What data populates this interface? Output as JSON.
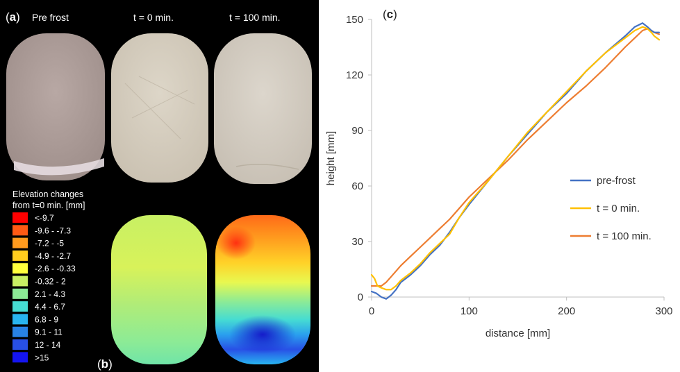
{
  "panel_a": {
    "label_letter": "a",
    "columns": [
      "Pre frost",
      "t = 0 min.",
      "t = 100 min."
    ]
  },
  "panel_b": {
    "label_letter": "b",
    "legend_title_line1": "Elevation changes",
    "legend_title_line2": "from t=0 min. [mm]",
    "legend": [
      {
        "label": "<-9.7",
        "color": "#ff0000"
      },
      {
        "label": "-9.6 - -7.3",
        "color": "#ff5a14"
      },
      {
        "label": "-7.2 - -5",
        "color": "#ff9a1e"
      },
      {
        "label": "-4.9 - -2.7",
        "color": "#ffcd1e"
      },
      {
        "label": "-2.6 - -0.33",
        "color": "#ffff3c"
      },
      {
        "label": "-0.32 - 2",
        "color": "#c8f064"
      },
      {
        "label": "2.1 - 4.3",
        "color": "#8ceb96"
      },
      {
        "label": "4.4 - 6.7",
        "color": "#46dcd2"
      },
      {
        "label": "6.8 - 9",
        "color": "#28b4f0"
      },
      {
        "label": "9.1 - 11",
        "color": "#2882e6"
      },
      {
        "label": "12 - 14",
        "color": "#2850e6"
      },
      {
        "label": ">15",
        "color": "#1414f0"
      }
    ]
  },
  "chart_data": {
    "type": "line",
    "panel_label": "c",
    "title": "",
    "xlabel": "distance [mm]",
    "ylabel": "height [mm]",
    "xlim": [
      0,
      300
    ],
    "ylim": [
      0,
      150
    ],
    "xticks": [
      0,
      100,
      200,
      300
    ],
    "yticks": [
      0,
      30,
      60,
      90,
      120,
      150
    ],
    "grid": false,
    "legend_position": "right",
    "series": [
      {
        "name": "pre-frost",
        "color": "#4472c4",
        "x": [
          0,
          5,
          10,
          15,
          20,
          25,
          30,
          40,
          50,
          60,
          70,
          80,
          90,
          100,
          120,
          140,
          160,
          180,
          200,
          220,
          240,
          260,
          270,
          278,
          283,
          287,
          290,
          295
        ],
        "y": [
          3,
          2,
          0,
          -1,
          1,
          4,
          8,
          12,
          17,
          23,
          28,
          35,
          43,
          50,
          63,
          76,
          88,
          100,
          110,
          122,
          132,
          141,
          146,
          148,
          146,
          144,
          143,
          143
        ]
      },
      {
        "name": "t = 0 min.",
        "color": "#ffc000",
        "x": [
          0,
          3,
          6,
          10,
          15,
          20,
          25,
          30,
          40,
          50,
          60,
          70,
          80,
          90,
          100,
          120,
          140,
          160,
          180,
          200,
          220,
          240,
          260,
          270,
          278,
          283,
          287,
          290,
          295
        ],
        "y": [
          12,
          10,
          6,
          5,
          4,
          4,
          6,
          9,
          13,
          18,
          24,
          29,
          34,
          43,
          51,
          63,
          76,
          89,
          100,
          111,
          122,
          132,
          140,
          144,
          146,
          145,
          143,
          141,
          139
        ]
      },
      {
        "name": "t = 100 min.",
        "color": "#ed7d31",
        "x": [
          0,
          5,
          10,
          15,
          20,
          30,
          40,
          50,
          60,
          70,
          80,
          90,
          100,
          120,
          140,
          160,
          180,
          200,
          220,
          240,
          260,
          270,
          278,
          283,
          287,
          290,
          295
        ],
        "y": [
          6,
          6,
          6,
          8,
          11,
          17,
          22,
          27,
          32,
          37,
          42,
          48,
          54,
          64,
          74,
          85,
          95,
          105,
          114,
          124,
          135,
          140,
          144,
          145,
          144,
          143,
          142
        ]
      }
    ]
  }
}
